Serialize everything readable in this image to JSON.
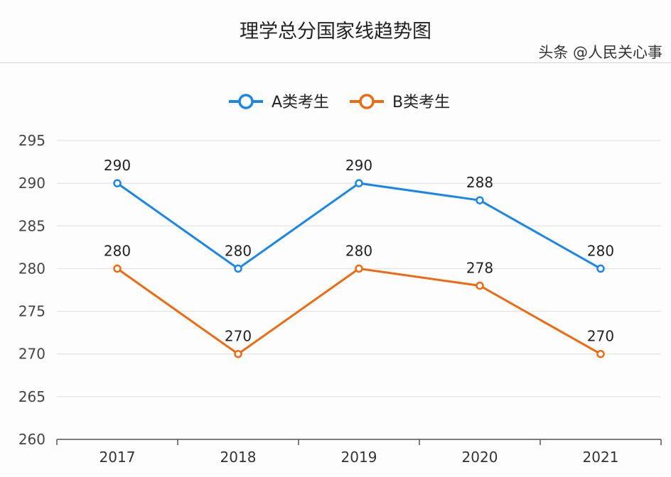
{
  "chart_data": {
    "type": "line",
    "title": "理学总分国家线趋势图",
    "categories": [
      "2017",
      "2018",
      "2019",
      "2020",
      "2021"
    ],
    "series": [
      {
        "name": "A类考生",
        "color": "#1a86e6",
        "values": [
          290,
          280,
          290,
          288,
          280
        ]
      },
      {
        "name": "B类考生",
        "color": "#ee6a12",
        "values": [
          280,
          270,
          280,
          278,
          270
        ]
      }
    ],
    "ylim": [
      260,
      295
    ],
    "yticks": [
      260,
      265,
      270,
      275,
      280,
      285,
      290,
      295
    ],
    "grid": true,
    "legend": "top-center",
    "data_labels": true
  },
  "watermark": "头条 @人民关心事"
}
